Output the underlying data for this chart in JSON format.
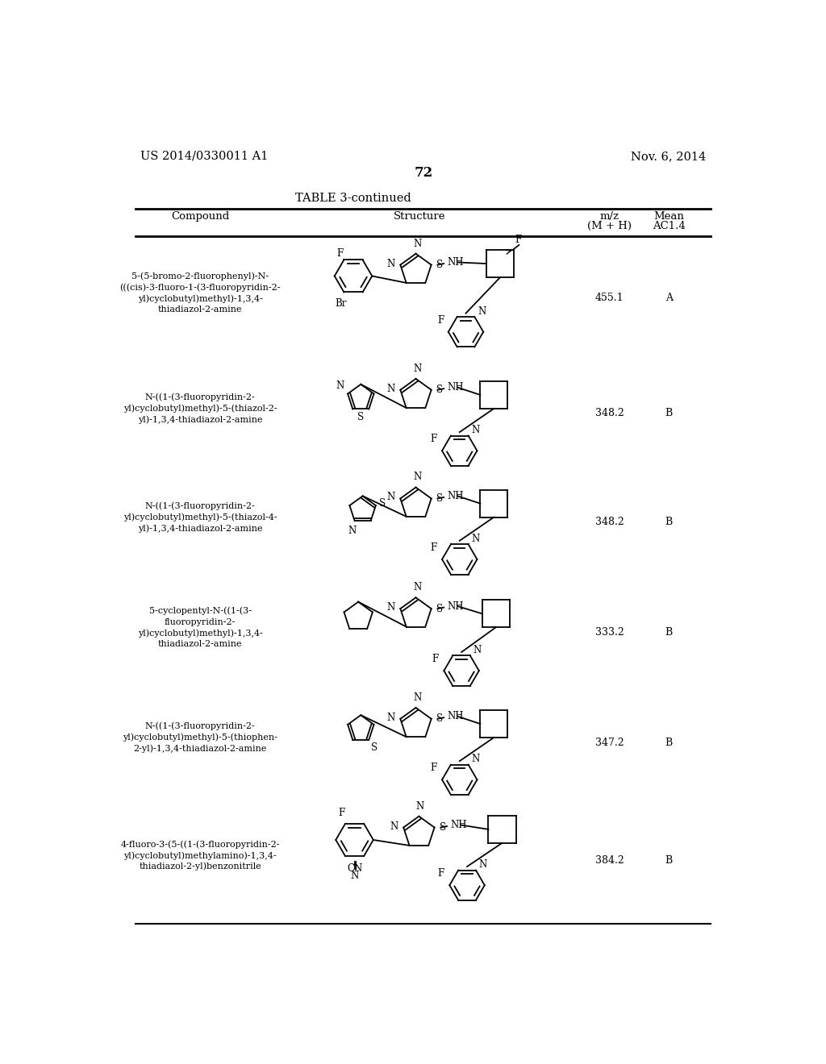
{
  "page_number": "72",
  "patent_number": "US 2014/0330011 A1",
  "patent_date": "Nov. 6, 2014",
  "table_title": "TABLE 3-continued",
  "rows": [
    {
      "compound": "5-(5-bromo-2-fluorophenyl)-N-\n(((cis)-3-fluoro-1-(3-fluoropyridin-2-\nyl)cyclobutyl)methyl)-1,3,4-\nthiadiazol-2-amine",
      "mz": "455.1",
      "ac": "A"
    },
    {
      "compound": "N-((1-(3-fluoropyridin-2-\nyl)cyclobutyl)methyl)-5-(thiazol-2-\nyl)-1,3,4-thiadiazol-2-amine",
      "mz": "348.2",
      "ac": "B"
    },
    {
      "compound": "N-((1-(3-fluoropyridin-2-\nyl)cyclobutyl)methyl)-5-(thiazol-4-\nyl)-1,3,4-thiadiazol-2-amine",
      "mz": "348.2",
      "ac": "B"
    },
    {
      "compound": "5-cyclopentyl-N-((1-(3-\nfluoropyridin-2-\nyl)cyclobutyl)methyl)-1,3,4-\nthiadiazol-2-amine",
      "mz": "333.2",
      "ac": "B"
    },
    {
      "compound": "N-((1-(3-fluoropyridin-2-\nyl)cyclobutyl)methyl)-5-(thiophen-\n2-yl)-1,3,4-thiadiazol-2-amine",
      "mz": "347.2",
      "ac": "B"
    },
    {
      "compound": "4-fluoro-3-(5-((1-(3-fluoropyridin-2-\nyl)cyclobutyl)methylamino)-1,3,4-\nthiadiazol-2-yl)benzonitrile",
      "mz": "384.2",
      "ac": "B"
    }
  ],
  "bg_color": "#ffffff",
  "text_color": "#000000",
  "lw": 1.3
}
